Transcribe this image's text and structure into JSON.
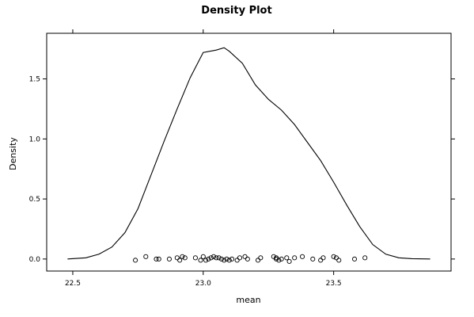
{
  "chart_data": {
    "type": "line",
    "title": "Density Plot",
    "xlabel": "mean",
    "ylabel": "Density",
    "xlim": [
      22.4,
      23.95
    ],
    "ylim": [
      -0.1,
      1.88
    ],
    "x_ticks": [
      22.5,
      23.0,
      23.5
    ],
    "x_tick_labels": [
      "22.5",
      "23.0",
      "23.5"
    ],
    "y_ticks": [
      0.0,
      0.5,
      1.0,
      1.5
    ],
    "y_tick_labels": [
      "0.0",
      "0.5",
      "1.0",
      "1.5"
    ],
    "grid": false,
    "density_curve": {
      "x": [
        22.48,
        22.55,
        22.6,
        22.65,
        22.7,
        22.75,
        22.8,
        22.85,
        22.9,
        22.95,
        23.0,
        23.05,
        23.08,
        23.1,
        23.15,
        23.2,
        23.25,
        23.3,
        23.35,
        23.4,
        23.45,
        23.5,
        23.55,
        23.6,
        23.65,
        23.7,
        23.75,
        23.8,
        23.87
      ],
      "y": [
        0.0,
        0.01,
        0.04,
        0.1,
        0.22,
        0.42,
        0.7,
        0.98,
        1.25,
        1.51,
        1.72,
        1.74,
        1.76,
        1.73,
        1.63,
        1.45,
        1.33,
        1.24,
        1.12,
        0.97,
        0.82,
        0.64,
        0.45,
        0.27,
        0.12,
        0.04,
        0.01,
        0.003,
        0.0
      ]
    },
    "rug_points": {
      "x": [
        22.74,
        22.78,
        22.82,
        22.83,
        22.87,
        22.9,
        22.91,
        22.92,
        22.93,
        22.97,
        22.99,
        23.0,
        23.01,
        23.02,
        23.03,
        23.04,
        23.05,
        23.06,
        23.07,
        23.08,
        23.09,
        23.1,
        23.11,
        23.13,
        23.14,
        23.16,
        23.17,
        23.21,
        23.22,
        23.27,
        23.28,
        23.28,
        23.29,
        23.3,
        23.32,
        23.33,
        23.35,
        23.38,
        23.42,
        23.45,
        23.46,
        23.5,
        23.51,
        23.52,
        23.58,
        23.62
      ],
      "y": [
        -0.01,
        0.02,
        0.0,
        0.0,
        0.0,
        0.01,
        -0.01,
        0.02,
        0.01,
        0.01,
        -0.01,
        0.02,
        -0.01,
        0.0,
        0.01,
        0.02,
        0.01,
        0.01,
        0.0,
        -0.01,
        0.0,
        -0.01,
        0.0,
        -0.01,
        0.01,
        0.02,
        0.0,
        -0.01,
        0.01,
        0.02,
        0.0,
        0.01,
        -0.01,
        0.0,
        0.01,
        -0.02,
        0.01,
        0.02,
        0.0,
        -0.01,
        0.01,
        0.02,
        0.01,
        -0.01,
        0.0,
        0.01
      ]
    }
  }
}
